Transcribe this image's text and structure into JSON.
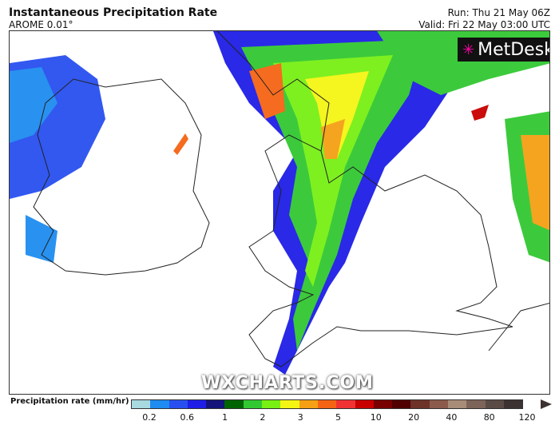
{
  "header": {
    "title": "Instantaneous Precipitation Rate",
    "model": "AROME 0.01°",
    "run": "Run: Thu 21 May 06Z",
    "valid": "Valid: Fri 22 May 03:00 UTC"
  },
  "logo": {
    "text": "MetDesk",
    "icon": "starburst-icon"
  },
  "watermark": "WXCHARTS.COM",
  "legend": {
    "label": "Precipitation rate (mm/hr)",
    "colors": [
      "#a8d8e0",
      "#1e8cf0",
      "#2850f0",
      "#1e1ee6",
      "#14147a",
      "#006400",
      "#32c832",
      "#78f014",
      "#f5f514",
      "#f5a014",
      "#f56414",
      "#f03232",
      "#c80000",
      "#780000",
      "#500000",
      "#6e3228",
      "#8c5a4b",
      "#a88c78",
      "#7d6458",
      "#5a4b46",
      "#3c3232"
    ],
    "ticks": [
      "0.2",
      "0.6",
      "1",
      "2",
      "3",
      "5",
      "10",
      "20",
      "40",
      "80",
      "120"
    ]
  }
}
